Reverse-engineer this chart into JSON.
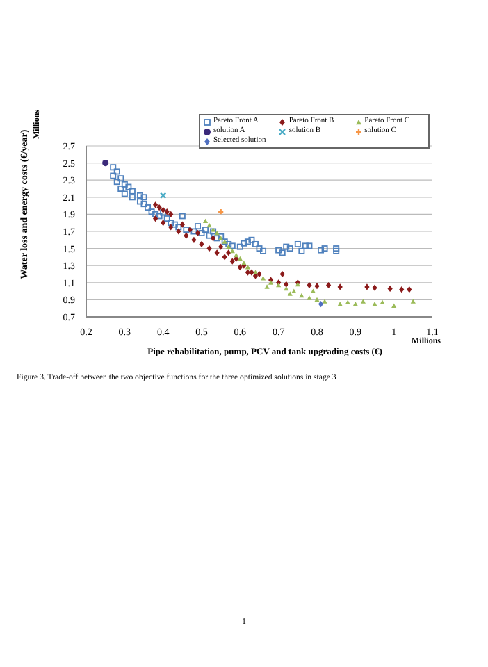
{
  "chart_data": {
    "type": "scatter",
    "xlabel": "Pipe rehabilitation, pump, PCV and tank upgrading costs (€)",
    "ylabel": "Water loss and energy costs (€/year)",
    "annotations": [
      "Millions",
      "Millions",
      "Figure 3. Trade-off between the two objective functions for the three optimized solutions in stage 3",
      "1"
    ],
    "xlim": [
      0.2,
      1.1
    ],
    "xticks": [
      0.2,
      0.3,
      0.4,
      0.5,
      0.6,
      0.7,
      0.8,
      0.9,
      1,
      1.1
    ],
    "ylim": [
      0.7,
      2.7
    ],
    "yticks": [
      0.7,
      0.9,
      1.1,
      1.3,
      1.5,
      1.7,
      1.9,
      2.1,
      2.3,
      2.5,
      2.7
    ],
    "grid": "y",
    "legend": "top right",
    "series": [
      {
        "name": "Pareto Front A",
        "color": "#4f81bd",
        "marker": "square",
        "x": [
          0.27,
          0.28,
          0.27,
          0.29,
          0.28,
          0.3,
          0.29,
          0.31,
          0.32,
          0.3,
          0.32,
          0.34,
          0.35,
          0.34,
          0.35,
          0.36,
          0.37,
          0.38,
          0.39,
          0.4,
          0.41,
          0.42,
          0.43,
          0.44,
          0.45,
          0.46,
          0.48,
          0.49,
          0.5,
          0.51,
          0.52,
          0.53,
          0.54,
          0.55,
          0.56,
          0.57,
          0.58,
          0.6,
          0.61,
          0.62,
          0.63,
          0.64,
          0.65,
          0.66,
          0.7,
          0.71,
          0.72,
          0.73,
          0.75,
          0.76,
          0.77,
          0.78,
          0.81,
          0.82,
          0.85,
          0.85
        ],
        "values": [
          2.45,
          2.4,
          2.35,
          2.32,
          2.28,
          2.25,
          2.2,
          2.22,
          2.17,
          2.14,
          2.1,
          2.12,
          2.1,
          2.05,
          2.02,
          1.98,
          1.93,
          1.9,
          1.88,
          1.92,
          1.85,
          1.8,
          1.78,
          1.75,
          1.88,
          1.72,
          1.7,
          1.76,
          1.68,
          1.72,
          1.65,
          1.7,
          1.62,
          1.64,
          1.58,
          1.55,
          1.53,
          1.52,
          1.56,
          1.58,
          1.6,
          1.55,
          1.5,
          1.47,
          1.48,
          1.45,
          1.52,
          1.5,
          1.55,
          1.47,
          1.53,
          1.53,
          1.48,
          1.5,
          1.5,
          1.47
        ]
      },
      {
        "name": "Pareto Front B",
        "color": "#8b1a1a",
        "marker": "diamond",
        "x": [
          0.38,
          0.39,
          0.4,
          0.41,
          0.42,
          0.38,
          0.4,
          0.42,
          0.44,
          0.46,
          0.48,
          0.5,
          0.52,
          0.54,
          0.56,
          0.58,
          0.6,
          0.62,
          0.64,
          0.66,
          0.68,
          0.7,
          0.71,
          0.72,
          0.75,
          0.78,
          0.8,
          0.83,
          0.86,
          0.93,
          0.95,
          0.99,
          1.02,
          1.04,
          0.45,
          0.47,
          0.49,
          0.53,
          0.55,
          0.57,
          0.59,
          0.61,
          0.63,
          0.65
        ],
        "values": [
          2.01,
          1.98,
          1.95,
          1.93,
          1.9,
          1.85,
          1.8,
          1.75,
          1.7,
          1.65,
          1.6,
          1.55,
          1.5,
          1.45,
          1.4,
          1.35,
          1.28,
          1.22,
          1.18,
          null,
          1.13,
          1.1,
          1.2,
          1.08,
          1.1,
          1.07,
          1.06,
          1.07,
          1.05,
          1.05,
          1.04,
          1.03,
          1.02,
          1.02,
          1.78,
          1.72,
          1.68,
          1.62,
          1.52,
          1.45,
          1.38,
          1.3,
          1.22,
          1.2
        ]
      },
      {
        "name": "Pareto Front C",
        "color": "#9bbb59",
        "marker": "triangle",
        "x": [
          0.51,
          0.52,
          0.53,
          0.54,
          0.55,
          0.56,
          0.57,
          0.58,
          0.59,
          0.6,
          0.61,
          0.62,
          0.64,
          0.66,
          0.68,
          0.7,
          0.72,
          0.74,
          0.76,
          0.78,
          0.8,
          0.82,
          0.86,
          0.88,
          0.9,
          0.92,
          0.95,
          0.97,
          1,
          1.05,
          0.75,
          0.79,
          0.73,
          0.67
        ],
        "values": [
          1.82,
          1.77,
          1.72,
          1.68,
          1.62,
          1.58,
          1.52,
          1.47,
          1.42,
          1.38,
          1.33,
          1.28,
          1.22,
          1.15,
          1.1,
          1.07,
          1.03,
          1,
          0.95,
          0.92,
          0.9,
          0.88,
          0.85,
          0.87,
          0.85,
          0.88,
          0.85,
          0.87,
          0.83,
          0.88,
          1.08,
          1,
          0.97,
          1.05
        ]
      },
      {
        "name": "solution A",
        "color": "#3b2a7a",
        "marker": "circle",
        "x": [
          0.25
        ],
        "values": [
          2.5
        ]
      },
      {
        "name": "solution B",
        "color": "#4bacc6",
        "marker": "x",
        "x": [
          0.4
        ],
        "values": [
          2.12
        ]
      },
      {
        "name": "solution C",
        "color": "#f79646",
        "marker": "cross",
        "x": [
          0.55
        ],
        "values": [
          1.93
        ]
      },
      {
        "name": "Selected solution",
        "color": "#4f6fc0",
        "marker": "diamond",
        "x": [
          0.81
        ],
        "values": [
          0.85
        ]
      }
    ]
  }
}
